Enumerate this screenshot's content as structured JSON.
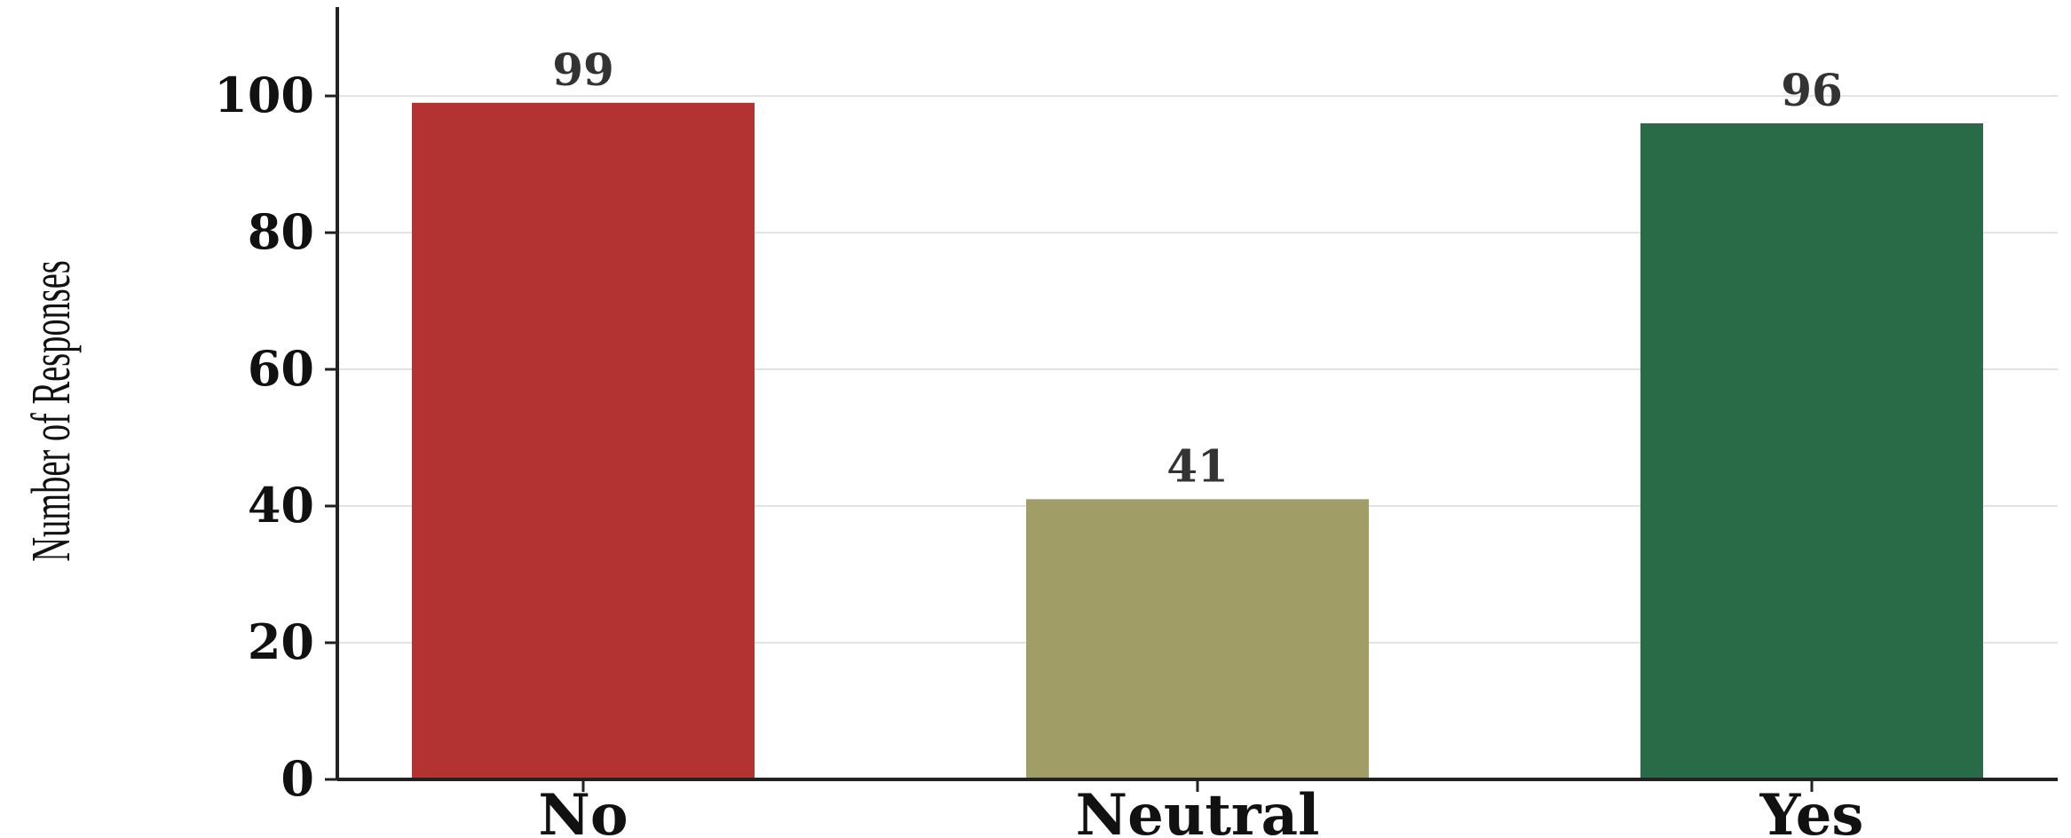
{
  "chart_data": {
    "type": "bar",
    "categories": [
      "No",
      "Neutral",
      "Yes"
    ],
    "values": [
      99,
      41,
      96
    ],
    "colors": [
      "#b33333",
      "#a09e66",
      "#2a6b47"
    ],
    "title": "",
    "xlabel": "",
    "ylabel": "Number of Responses",
    "ylim": [
      0,
      113
    ],
    "yticks": [
      0,
      20,
      40,
      60,
      80,
      100
    ],
    "grid": "horizontal",
    "data_labels": true
  }
}
